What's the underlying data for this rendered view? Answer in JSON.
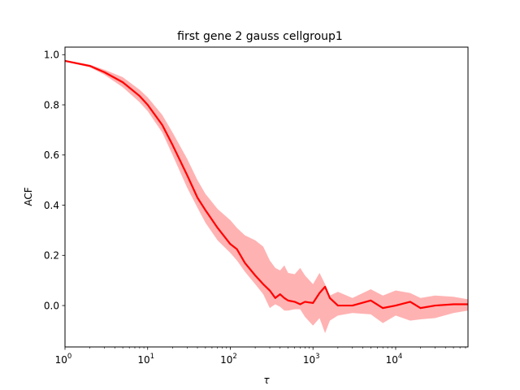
{
  "chart_data": {
    "type": "line",
    "title": "first gene 2 gauss cellgroup1",
    "xlabel": "τ",
    "ylabel": "ACF",
    "xscale": "log",
    "xlim": [
      1,
      75000
    ],
    "ylim": [
      -0.165,
      1.03
    ],
    "grid": false,
    "x_ticks": [
      {
        "base": "10",
        "exp": "0",
        "value": 1
      },
      {
        "base": "10",
        "exp": "1",
        "value": 10
      },
      {
        "base": "10",
        "exp": "2",
        "value": 100
      },
      {
        "base": "10",
        "exp": "3",
        "value": 1000
      },
      {
        "base": "10",
        "exp": "4",
        "value": 10000
      }
    ],
    "y_ticks": [
      {
        "label": "0.0",
        "value": 0.0
      },
      {
        "label": "0.2",
        "value": 0.2
      },
      {
        "label": "0.4",
        "value": 0.4
      },
      {
        "label": "0.6",
        "value": 0.6
      },
      {
        "label": "0.8",
        "value": 0.8
      },
      {
        "label": "1.0",
        "value": 1.0
      }
    ],
    "series": [
      {
        "color": "#ff0000",
        "band_color": "#ff0000",
        "band_opacity": 0.3,
        "x": [
          1,
          2,
          3,
          5,
          8,
          10,
          15,
          20,
          30,
          40,
          50,
          70,
          100,
          120,
          150,
          200,
          250,
          300,
          350,
          400,
          450,
          500,
          600,
          700,
          800,
          1000,
          1200,
          1400,
          1600,
          2000,
          3000,
          5000,
          7000,
          10000,
          15000,
          20000,
          30000,
          50000,
          75000
        ],
        "y": [
          0.975,
          0.955,
          0.93,
          0.89,
          0.835,
          0.8,
          0.72,
          0.64,
          0.52,
          0.43,
          0.38,
          0.31,
          0.245,
          0.225,
          0.17,
          0.12,
          0.085,
          0.06,
          0.03,
          0.045,
          0.03,
          0.02,
          0.015,
          0.005,
          0.015,
          0.01,
          0.05,
          0.075,
          0.03,
          0.0,
          0.0,
          0.02,
          -0.01,
          0.0,
          0.015,
          -0.01,
          0.0,
          0.005,
          0.005
        ],
        "upper": [
          0.978,
          0.96,
          0.94,
          0.91,
          0.86,
          0.83,
          0.76,
          0.69,
          0.585,
          0.5,
          0.445,
          0.385,
          0.34,
          0.31,
          0.28,
          0.26,
          0.235,
          0.18,
          0.15,
          0.14,
          0.16,
          0.13,
          0.125,
          0.15,
          0.12,
          0.085,
          0.13,
          0.085,
          0.04,
          0.055,
          0.03,
          0.065,
          0.04,
          0.06,
          0.05,
          0.03,
          0.04,
          0.035,
          0.025
        ],
        "lower": [
          0.972,
          0.95,
          0.92,
          0.87,
          0.81,
          0.775,
          0.69,
          0.6,
          0.47,
          0.39,
          0.33,
          0.26,
          0.21,
          0.18,
          0.135,
          0.085,
          0.045,
          -0.01,
          0.005,
          -0.005,
          -0.02,
          -0.02,
          -0.015,
          -0.015,
          -0.045,
          -0.08,
          -0.05,
          -0.11,
          -0.06,
          -0.04,
          -0.03,
          -0.035,
          -0.07,
          -0.04,
          -0.06,
          -0.055,
          -0.05,
          -0.03,
          -0.02
        ]
      }
    ]
  }
}
